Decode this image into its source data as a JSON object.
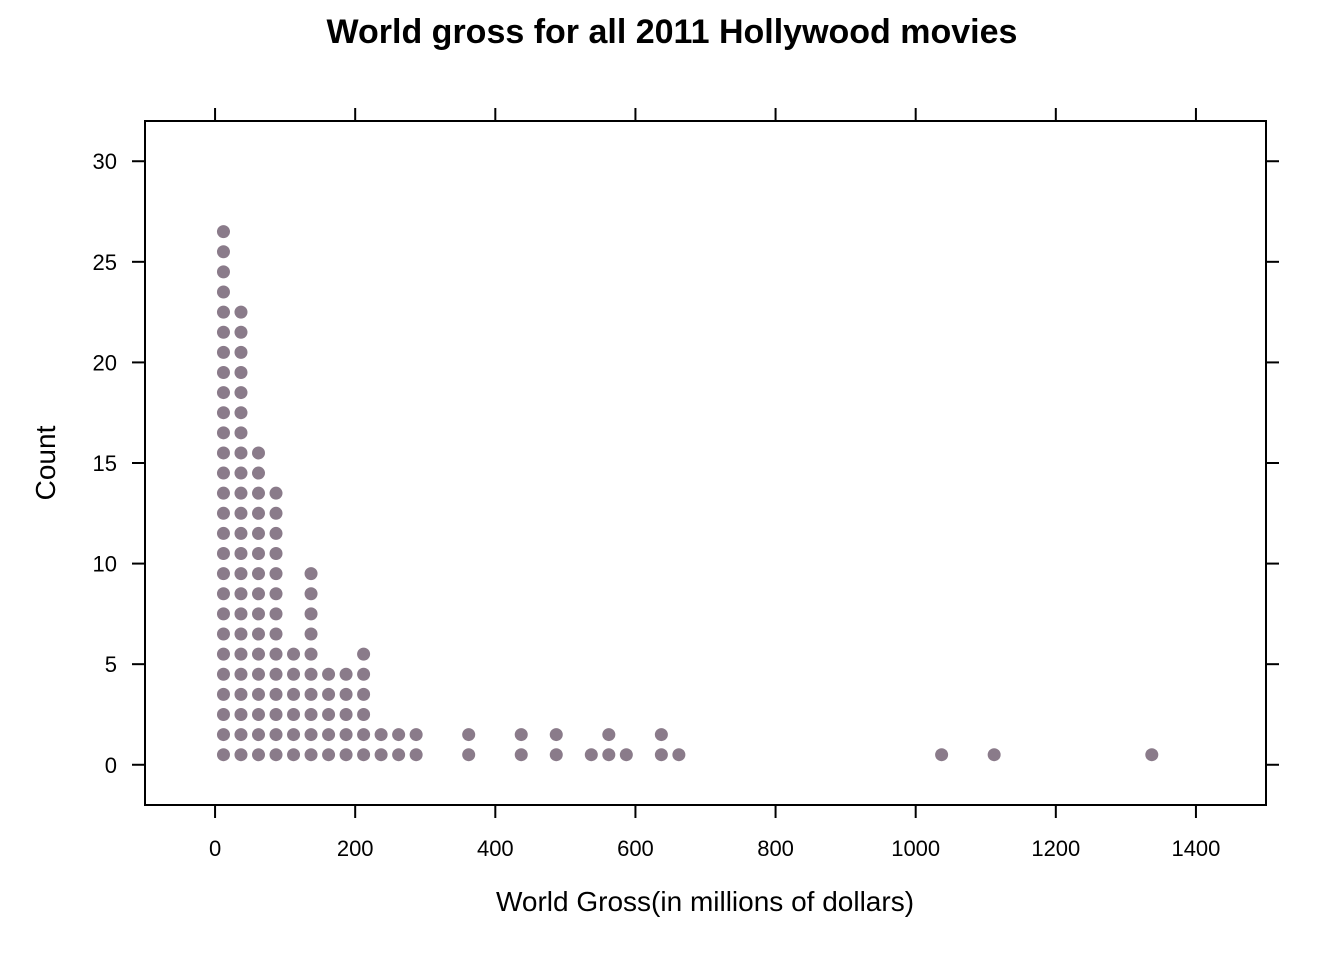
{
  "chart_data": {
    "type": "scatter",
    "subtype": "dotplot",
    "title": "World gross for all 2011 Hollywood movies",
    "xlabel": "World Gross(in millions of dollars)",
    "ylabel": "Count",
    "xlim": [
      -100,
      1500
    ],
    "ylim": [
      -2,
      32
    ],
    "xticks": [
      0,
      200,
      400,
      600,
      800,
      1000,
      1200,
      1400
    ],
    "yticks": [
      0,
      5,
      10,
      15,
      20,
      25,
      30
    ],
    "grid": false,
    "legend": "none",
    "dot_color": "#8a7b8a",
    "stacks": [
      {
        "x": 12,
        "count": 27
      },
      {
        "x": 37,
        "count": 23
      },
      {
        "x": 62,
        "count": 16
      },
      {
        "x": 87,
        "count": 14
      },
      {
        "x": 112,
        "count": 6
      },
      {
        "x": 137,
        "count": 10
      },
      {
        "x": 162,
        "count": 5
      },
      {
        "x": 187,
        "count": 5
      },
      {
        "x": 212,
        "count": 6
      },
      {
        "x": 237,
        "count": 2
      },
      {
        "x": 262,
        "count": 2
      },
      {
        "x": 287,
        "count": 2
      },
      {
        "x": 362,
        "count": 2
      },
      {
        "x": 437,
        "count": 2
      },
      {
        "x": 487,
        "count": 2
      },
      {
        "x": 537,
        "count": 1
      },
      {
        "x": 562,
        "count": 2
      },
      {
        "x": 587,
        "count": 1
      },
      {
        "x": 637,
        "count": 2
      },
      {
        "x": 662,
        "count": 1
      },
      {
        "x": 1037,
        "count": 1
      },
      {
        "x": 1112,
        "count": 1
      },
      {
        "x": 1337,
        "count": 1
      }
    ]
  }
}
